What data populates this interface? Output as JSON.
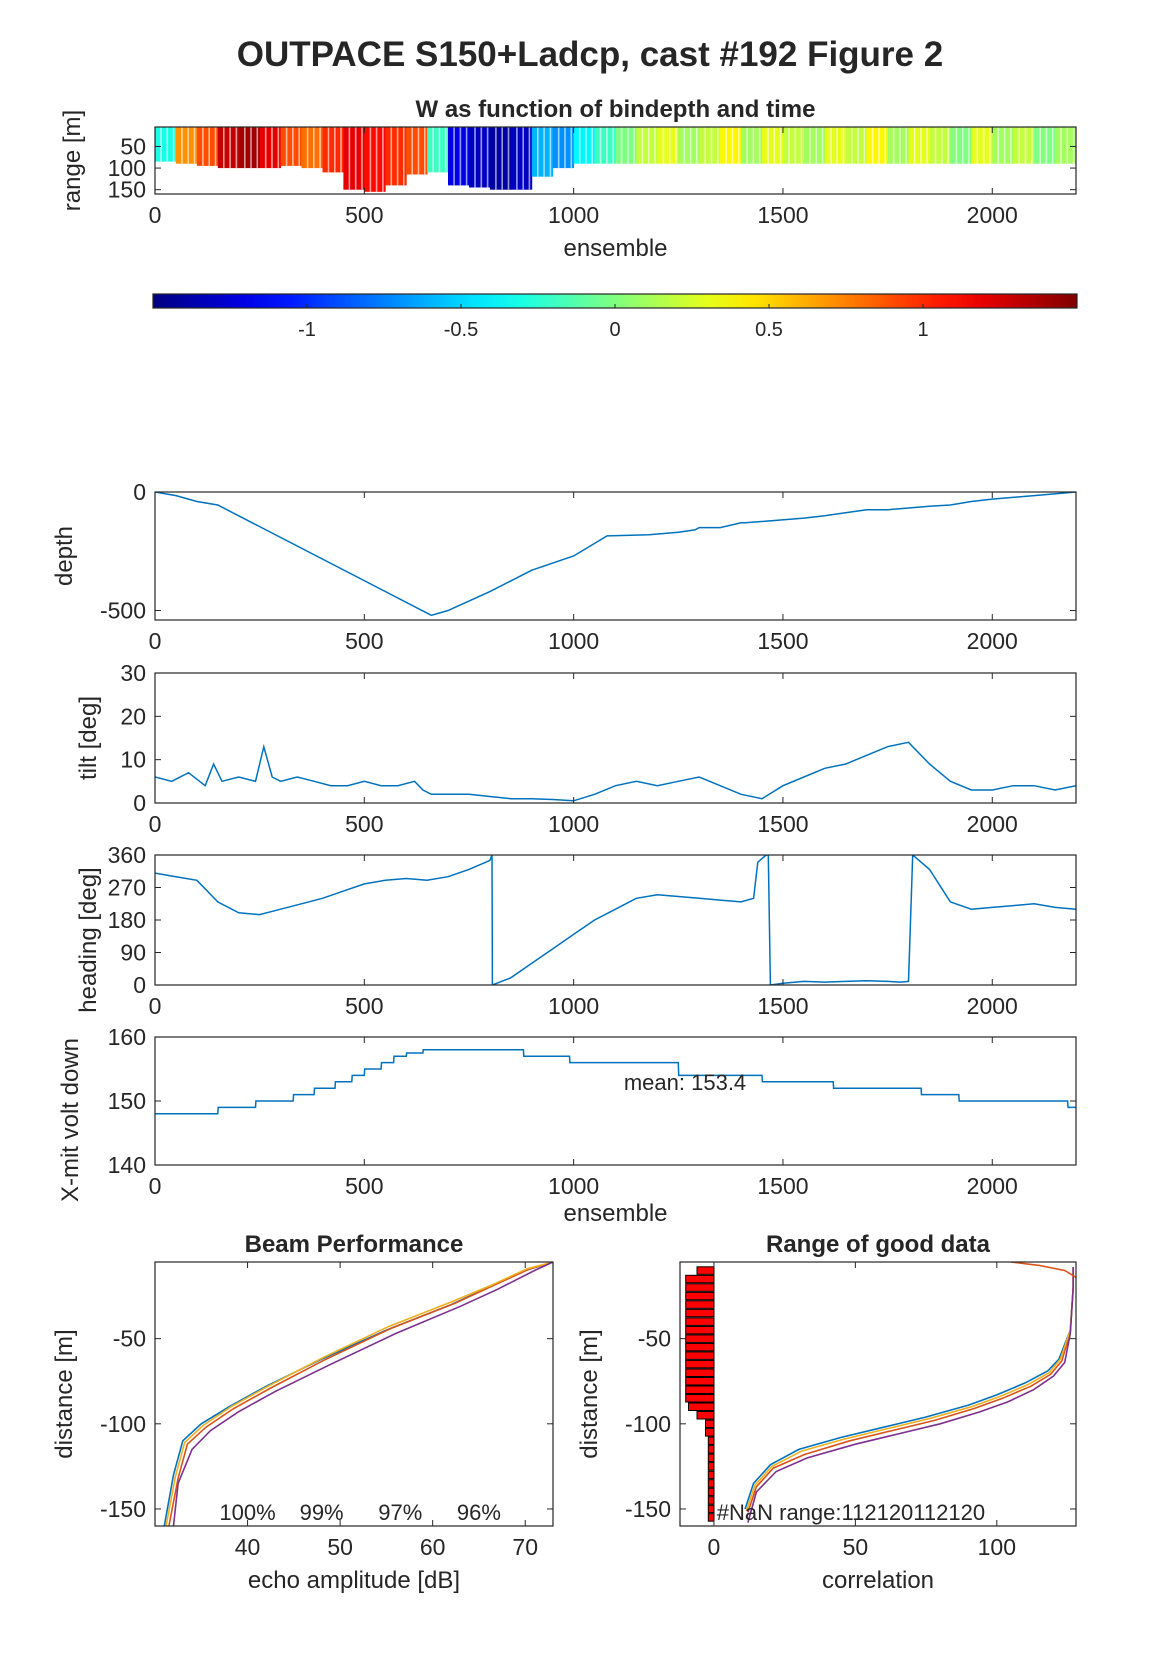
{
  "figure_title": "OUTPACE S150+Ladcp, cast #192 Figure 2",
  "chart_data": [
    {
      "id": "w-image",
      "type": "heatmap",
      "title": "W as function of bindepth and time",
      "xlabel": "ensemble",
      "ylabel": "range [m]",
      "xlim": [
        0,
        2200
      ],
      "ylim": [
        160,
        5
      ],
      "xticks": [
        0,
        500,
        1000,
        1500,
        2000
      ],
      "yticks": [
        50,
        100,
        150
      ],
      "colorbar": {
        "clim": [
          -1.5,
          1.5
        ],
        "ticks": [
          -1,
          -0.5,
          0,
          0.5,
          1
        ],
        "colormap": "jet"
      },
      "columns": [
        {
          "x": 0,
          "w": -0.3,
          "range": 85
        },
        {
          "x": 50,
          "w": 0.7,
          "range": 90
        },
        {
          "x": 100,
          "w": 0.9,
          "range": 95
        },
        {
          "x": 150,
          "w": 1.3,
          "range": 100
        },
        {
          "x": 200,
          "w": 1.4,
          "range": 100
        },
        {
          "x": 250,
          "w": 1.2,
          "range": 100
        },
        {
          "x": 300,
          "w": 0.9,
          "range": 95
        },
        {
          "x": 350,
          "w": 0.8,
          "range": 100
        },
        {
          "x": 400,
          "w": 1.0,
          "range": 110
        },
        {
          "x": 450,
          "w": 1.2,
          "range": 150
        },
        {
          "x": 500,
          "w": 1.1,
          "range": 155
        },
        {
          "x": 550,
          "w": 1.0,
          "range": 140
        },
        {
          "x": 600,
          "w": 0.9,
          "range": 115
        },
        {
          "x": 650,
          "w": -0.2,
          "range": 110
        },
        {
          "x": 700,
          "w": -1.2,
          "range": 140
        },
        {
          "x": 750,
          "w": -1.3,
          "range": 145
        },
        {
          "x": 800,
          "w": -1.4,
          "range": 150
        },
        {
          "x": 850,
          "w": -1.3,
          "range": 150
        },
        {
          "x": 900,
          "w": -0.6,
          "range": 120
        },
        {
          "x": 950,
          "w": -0.7,
          "range": 100
        },
        {
          "x": 1000,
          "w": -0.4,
          "range": 90
        },
        {
          "x": 1050,
          "w": -0.2,
          "range": 90
        },
        {
          "x": 1100,
          "w": 0.0,
          "range": 90
        },
        {
          "x": 1150,
          "w": 0.2,
          "range": 90
        },
        {
          "x": 1200,
          "w": 0.3,
          "range": 90
        },
        {
          "x": 1250,
          "w": 0.1,
          "range": 90
        },
        {
          "x": 1300,
          "w": 0.2,
          "range": 90
        },
        {
          "x": 1350,
          "w": 0.4,
          "range": 90
        },
        {
          "x": 1400,
          "w": 0.1,
          "range": 90
        },
        {
          "x": 1450,
          "w": 0.3,
          "range": 90
        },
        {
          "x": 1500,
          "w": 0.2,
          "range": 90
        },
        {
          "x": 1550,
          "w": 0.1,
          "range": 90
        },
        {
          "x": 1600,
          "w": 0.3,
          "range": 90
        },
        {
          "x": 1650,
          "w": 0.2,
          "range": 90
        },
        {
          "x": 1700,
          "w": 0.4,
          "range": 90
        },
        {
          "x": 1750,
          "w": 0.1,
          "range": 90
        },
        {
          "x": 1800,
          "w": 0.3,
          "range": 90
        },
        {
          "x": 1850,
          "w": 0.2,
          "range": 90
        },
        {
          "x": 1900,
          "w": 0.0,
          "range": 90
        },
        {
          "x": 1950,
          "w": 0.3,
          "range": 90
        },
        {
          "x": 2000,
          "w": 0.1,
          "range": 90
        },
        {
          "x": 2050,
          "w": 0.2,
          "range": 90
        },
        {
          "x": 2100,
          "w": 0.0,
          "range": 90
        },
        {
          "x": 2150,
          "w": 0.1,
          "range": 90
        }
      ]
    },
    {
      "id": "depth",
      "type": "line",
      "xlabel": "",
      "ylabel": "depth",
      "xlim": [
        0,
        2200
      ],
      "ylim": [
        -540,
        0
      ],
      "xticks": [
        0,
        500,
        1000,
        1500,
        2000
      ],
      "yticks": [
        -500,
        0
      ],
      "x": [
        0,
        50,
        100,
        150,
        660,
        700,
        800,
        900,
        1000,
        1080,
        1180,
        1250,
        1290,
        1300,
        1350,
        1400,
        1410,
        1550,
        1600,
        1620,
        1700,
        1750,
        1850,
        1900,
        1950,
        2000,
        2100,
        2200
      ],
      "y": [
        0,
        -15,
        -40,
        -55,
        -520,
        -500,
        -420,
        -330,
        -270,
        -185,
        -180,
        -170,
        -160,
        -150,
        -150,
        -130,
        -130,
        -110,
        -100,
        -95,
        -75,
        -75,
        -60,
        -55,
        -40,
        -30,
        -15,
        0
      ]
    },
    {
      "id": "tilt",
      "type": "line",
      "xlabel": "",
      "ylabel": "tilt [deg]",
      "xlim": [
        0,
        2200
      ],
      "ylim": [
        0,
        30
      ],
      "xticks": [
        0,
        500,
        1000,
        1500,
        2000
      ],
      "yticks": [
        0,
        10,
        20,
        30
      ],
      "x": [
        0,
        40,
        80,
        120,
        140,
        160,
        200,
        240,
        260,
        280,
        300,
        340,
        380,
        420,
        460,
        500,
        540,
        580,
        620,
        640,
        660,
        700,
        750,
        800,
        850,
        900,
        950,
        1000,
        1050,
        1100,
        1150,
        1200,
        1250,
        1300,
        1350,
        1400,
        1450,
        1500,
        1550,
        1600,
        1650,
        1700,
        1750,
        1800,
        1850,
        1900,
        1950,
        2000,
        2050,
        2100,
        2150,
        2200
      ],
      "y": [
        6,
        5,
        7,
        4,
        9,
        5,
        6,
        5,
        13,
        6,
        5,
        6,
        5,
        4,
        4,
        5,
        4,
        4,
        5,
        3,
        2,
        2,
        2,
        1.5,
        1,
        1,
        0.8,
        0.5,
        2,
        4,
        5,
        4,
        5,
        6,
        4,
        2,
        1,
        4,
        6,
        8,
        9,
        11,
        13,
        14,
        9,
        5,
        3,
        3,
        4,
        4,
        3,
        4
      ]
    },
    {
      "id": "heading",
      "type": "line",
      "xlabel": "",
      "ylabel": "heading [deg]",
      "xlim": [
        0,
        2200
      ],
      "ylim": [
        0,
        360
      ],
      "xticks": [
        0,
        500,
        1000,
        1500,
        2000
      ],
      "yticks": [
        0,
        90,
        180,
        270,
        360
      ],
      "x": [
        0,
        50,
        100,
        150,
        200,
        250,
        300,
        350,
        400,
        450,
        500,
        550,
        600,
        650,
        700,
        750,
        800,
        805,
        806,
        850,
        900,
        950,
        1000,
        1050,
        1100,
        1150,
        1200,
        1250,
        1300,
        1350,
        1400,
        1430,
        1440,
        1460,
        1465,
        1470,
        1500,
        1550,
        1600,
        1650,
        1700,
        1750,
        1780,
        1800,
        1810,
        1820,
        1850,
        1900,
        1950,
        2000,
        2050,
        2100,
        2150,
        2200
      ],
      "y": [
        310,
        300,
        290,
        230,
        200,
        195,
        210,
        225,
        240,
        260,
        280,
        290,
        295,
        290,
        300,
        320,
        345,
        360,
        0,
        20,
        60,
        100,
        140,
        180,
        210,
        240,
        250,
        245,
        240,
        235,
        230,
        240,
        340,
        360,
        360,
        0,
        5,
        10,
        8,
        10,
        12,
        10,
        8,
        10,
        360,
        350,
        320,
        230,
        210,
        215,
        220,
        225,
        215,
        210
      ]
    },
    {
      "id": "voltage",
      "type": "line",
      "xlabel": "ensemble",
      "ylabel": "X-mit volt down",
      "annotation": "mean: 153.4",
      "xlim": [
        0,
        2200
      ],
      "ylim": [
        140,
        160
      ],
      "xticks": [
        0,
        500,
        1000,
        1500,
        2000
      ],
      "yticks": [
        140,
        150,
        160
      ],
      "x": [
        0,
        150,
        151,
        240,
        241,
        330,
        331,
        380,
        381,
        430,
        431,
        470,
        471,
        500,
        501,
        540,
        541,
        570,
        571,
        600,
        601,
        640,
        641,
        660,
        661,
        880,
        881,
        990,
        991,
        1250,
        1251,
        1450,
        1451,
        1620,
        1621,
        1830,
        1831,
        1920,
        1921,
        2180,
        2181,
        2200
      ],
      "y": [
        148,
        148,
        149,
        149,
        150,
        150,
        151,
        151,
        152,
        152,
        153,
        153,
        154,
        154,
        155,
        155,
        156,
        156,
        157,
        157,
        157.5,
        157.5,
        158,
        158,
        158,
        158,
        157,
        157,
        156,
        156,
        154,
        154,
        153,
        153,
        152,
        152,
        151,
        151,
        150,
        150,
        149,
        149
      ]
    },
    {
      "id": "beam",
      "type": "line",
      "title": "Beam Performance",
      "xlabel": "echo amplitude [dB]",
      "ylabel": "distance [m]",
      "xlim": [
        30,
        73
      ],
      "ylim": [
        -160,
        -5
      ],
      "xticks": [
        40,
        50,
        60,
        70
      ],
      "yticks": [
        -150,
        -100,
        -50
      ],
      "labels": [
        "100%",
        "99%",
        "97%",
        "96%"
      ],
      "series": [
        {
          "color": "#0072BD",
          "x": [
            31,
            32,
            33,
            35,
            38,
            42,
            48,
            55,
            62,
            66,
            70,
            73
          ],
          "y": [
            -160,
            -130,
            -110,
            -100,
            -90,
            -78,
            -62,
            -45,
            -30,
            -20,
            -10,
            -5
          ]
        },
        {
          "color": "#D95319",
          "x": [
            31.5,
            32.5,
            33.5,
            35.5,
            38.5,
            42.5,
            48.5,
            55.5,
            62.5,
            66.5,
            70.5,
            73
          ],
          "y": [
            -160,
            -132,
            -112,
            -102,
            -91,
            -79,
            -62,
            -44,
            -29,
            -19,
            -9,
            -5
          ]
        },
        {
          "color": "#EDB120",
          "x": [
            31.2,
            32.2,
            33.2,
            35.2,
            38.2,
            42.2,
            48.2,
            55.2,
            62.2,
            66.2,
            70.2,
            73
          ],
          "y": [
            -160,
            -131,
            -111,
            -101,
            -90,
            -78,
            -61,
            -43,
            -28,
            -19,
            -9,
            -5
          ]
        },
        {
          "color": "#7E2F8E",
          "x": [
            32,
            32.5,
            34,
            36,
            39,
            43,
            49,
            56,
            63,
            67,
            71,
            73
          ],
          "y": [
            -160,
            -135,
            -115,
            -104,
            -93,
            -81,
            -65,
            -47,
            -31,
            -21,
            -10,
            -5
          ]
        }
      ]
    },
    {
      "id": "good-range",
      "type": "line",
      "title": "Range of good data",
      "xlabel": "correlation",
      "ylabel": "distance [m]",
      "annotation": "#NaN range:112120112120",
      "xlim": [
        -12,
        128
      ],
      "ylim": [
        -160,
        -5
      ],
      "xticks": [
        0,
        50,
        100
      ],
      "yticks": [
        -150,
        -100,
        -50
      ],
      "bars": [
        {
          "y": -10,
          "len": 6
        },
        {
          "y": -15,
          "len": 10
        },
        {
          "y": -20,
          "len": 10
        },
        {
          "y": -25,
          "len": 10
        },
        {
          "y": -30,
          "len": 10
        },
        {
          "y": -35,
          "len": 10
        },
        {
          "y": -40,
          "len": 10
        },
        {
          "y": -45,
          "len": 10
        },
        {
          "y": -50,
          "len": 10
        },
        {
          "y": -55,
          "len": 10
        },
        {
          "y": -60,
          "len": 10
        },
        {
          "y": -65,
          "len": 10
        },
        {
          "y": -70,
          "len": 10
        },
        {
          "y": -75,
          "len": 10
        },
        {
          "y": -80,
          "len": 10
        },
        {
          "y": -85,
          "len": 10
        },
        {
          "y": -90,
          "len": 9
        },
        {
          "y": -95,
          "len": 6
        },
        {
          "y": -100,
          "len": 3
        },
        {
          "y": -105,
          "len": 3
        },
        {
          "y": -110,
          "len": 2
        },
        {
          "y": -115,
          "len": 2
        },
        {
          "y": -120,
          "len": 2
        },
        {
          "y": -125,
          "len": 2
        },
        {
          "y": -130,
          "len": 2
        },
        {
          "y": -135,
          "len": 2
        },
        {
          "y": -140,
          "len": 2
        },
        {
          "y": -145,
          "len": 2
        },
        {
          "y": -150,
          "len": 2
        },
        {
          "y": -155,
          "len": 2
        }
      ],
      "series": [
        {
          "color": "#0072BD",
          "x": [
            11,
            14,
            20,
            30,
            45,
            60,
            75,
            90,
            100,
            110,
            118,
            122,
            126,
            127,
            127
          ],
          "y": [
            -150,
            -135,
            -124,
            -115,
            -108,
            -102,
            -96,
            -89,
            -83,
            -76,
            -69,
            -62,
            -45,
            -20,
            -8
          ]
        },
        {
          "color": "#D95319",
          "x": [
            12,
            15,
            21,
            32,
            48,
            63,
            78,
            92,
            102,
            112,
            119,
            123,
            126,
            127,
            127
          ],
          "y": [
            -152,
            -137,
            -126,
            -118,
            -110,
            -104,
            -98,
            -91,
            -85,
            -78,
            -71,
            -63,
            -46,
            -20,
            -8
          ]
        },
        {
          "color": "#EDB120",
          "x": [
            11.5,
            14.5,
            20.5,
            31,
            46,
            61,
            76,
            91,
            101,
            111,
            118.5,
            122.5,
            126,
            127,
            127
          ],
          "y": [
            -151,
            -136,
            -125,
            -116,
            -109,
            -103,
            -97,
            -90,
            -84,
            -77,
            -70,
            -62,
            -45,
            -20,
            -8
          ]
        },
        {
          "color": "#7E2F8E",
          "x": [
            12,
            15,
            22,
            33,
            50,
            65,
            80,
            94,
            104,
            113,
            120,
            124,
            126,
            127,
            127
          ],
          "y": [
            -158,
            -140,
            -128,
            -120,
            -112,
            -106,
            -100,
            -93,
            -87,
            -80,
            -72,
            -64,
            -47,
            -20,
            -8
          ]
        }
      ],
      "top_series": {
        "color": "#D95319",
        "x": [
          105,
          115,
          124,
          128
        ],
        "y": [
          -5,
          -7,
          -10,
          -14
        ]
      }
    }
  ]
}
